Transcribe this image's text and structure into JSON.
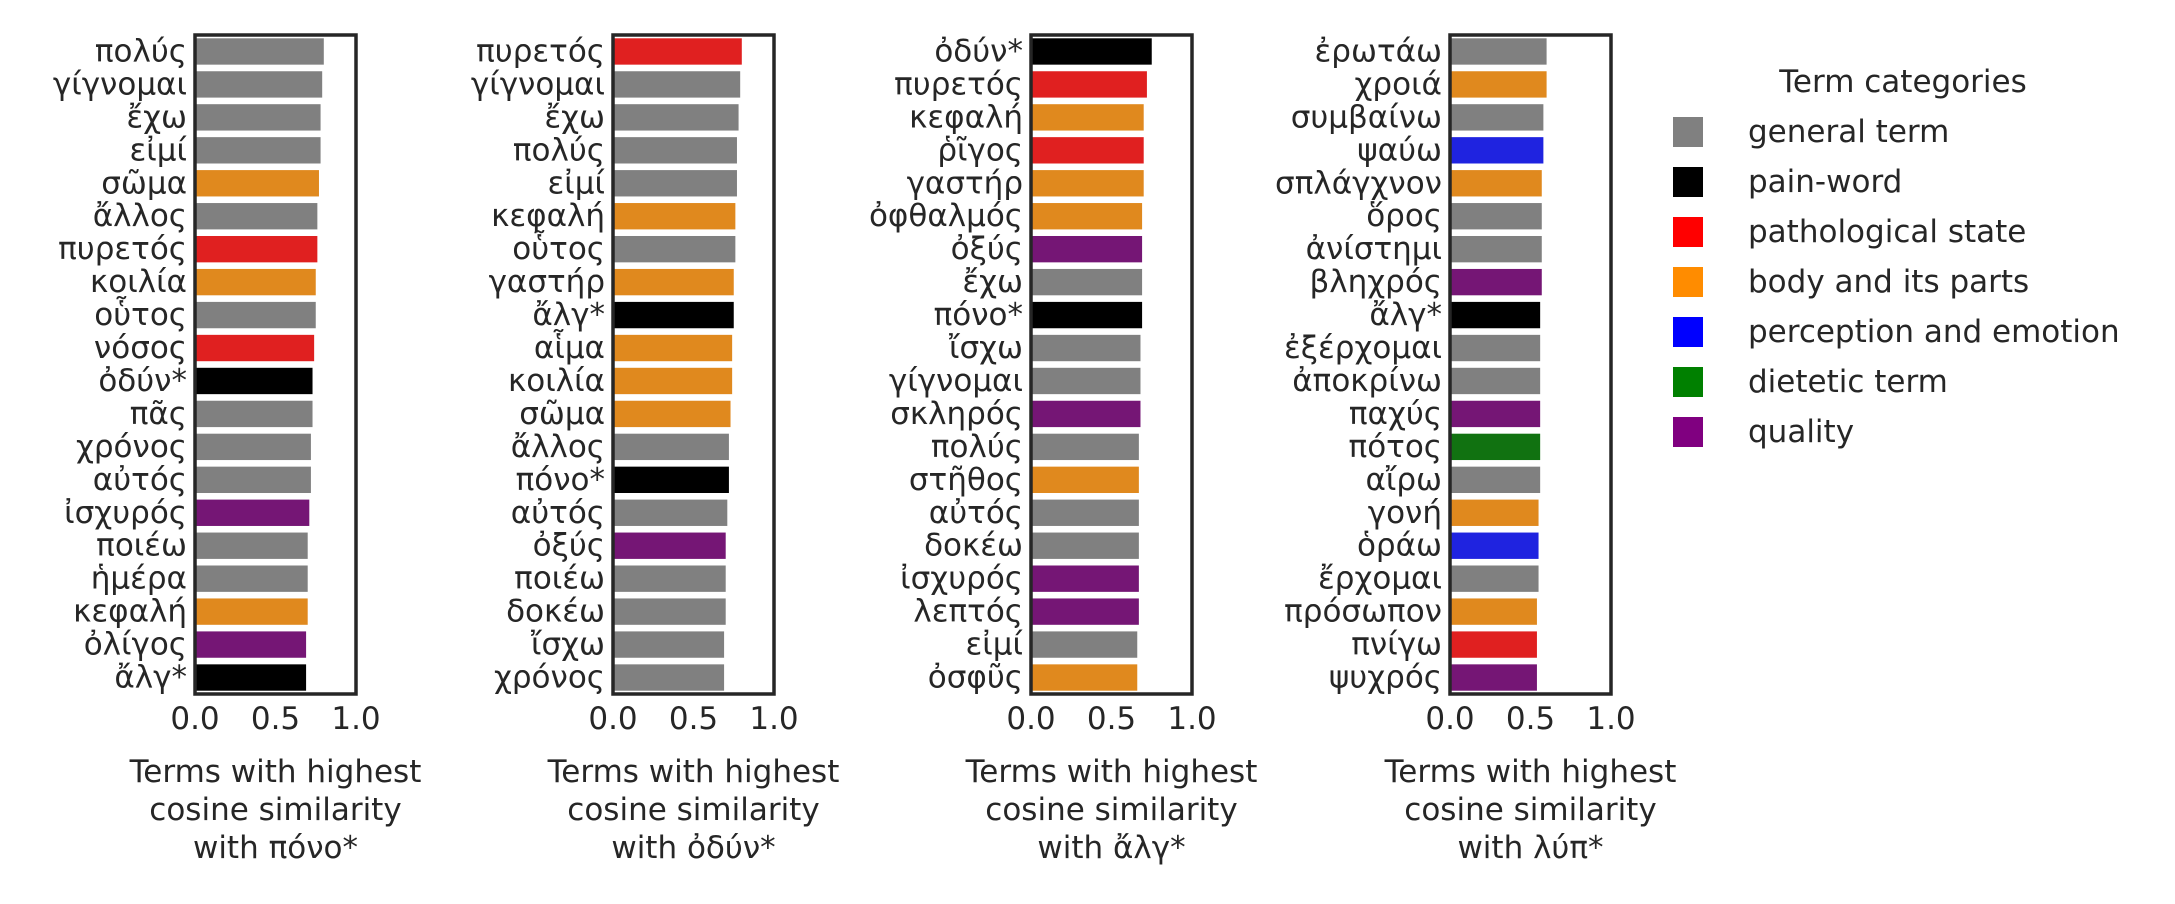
{
  "chart_data": [
    {
      "type": "bar",
      "orientation": "horizontal",
      "xlabel": "Terms with highest cosine similarity with πόνο*",
      "xlim": [
        0,
        1
      ],
      "xticks": [
        "0.0",
        "0.5",
        "1.0"
      ],
      "categories": [
        "πολύς",
        "γίγνομαι",
        "ἔχω",
        "εἰμί",
        "σῶμα",
        "ἄλλος",
        "πυρετός",
        "κοιλία",
        "οὗτος",
        "νόσος",
        "ὀδύν*",
        "πᾶς",
        "χρόνος",
        "αὐτός",
        "ἰσχυρός",
        "ποιέω",
        "ἡμέρα",
        "κεφαλή",
        "ὀλίγος",
        "ἄλγ*"
      ],
      "values": [
        0.8,
        0.79,
        0.78,
        0.78,
        0.77,
        0.76,
        0.76,
        0.75,
        0.75,
        0.74,
        0.73,
        0.73,
        0.72,
        0.72,
        0.71,
        0.7,
        0.7,
        0.7,
        0.69,
        0.69
      ],
      "groups": [
        "general term",
        "general term",
        "general term",
        "general term",
        "body and its parts",
        "general term",
        "pathological state",
        "body and its parts",
        "general term",
        "pathological state",
        "pain-word",
        "general term",
        "general term",
        "general term",
        "quality",
        "general term",
        "general term",
        "body and its parts",
        "quality",
        "pain-word"
      ]
    },
    {
      "type": "bar",
      "orientation": "horizontal",
      "xlabel": "Terms with highest cosine similarity with ὀδύν*",
      "xlim": [
        0,
        1
      ],
      "xticks": [
        "0.0",
        "0.5",
        "1.0"
      ],
      "categories": [
        "πυρετός",
        "γίγνομαι",
        "ἔχω",
        "πολύς",
        "εἰμί",
        "κεφαλή",
        "οὗτος",
        "γαστήρ",
        "ἄλγ*",
        "αἷμα",
        "κοιλία",
        "σῶμα",
        "ἄλλος",
        "πόνο*",
        "αὐτός",
        "ὀξύς",
        "ποιέω",
        "δοκέω",
        "ἴσχω",
        "χρόνος"
      ],
      "values": [
        0.8,
        0.79,
        0.78,
        0.77,
        0.77,
        0.76,
        0.76,
        0.75,
        0.75,
        0.74,
        0.74,
        0.73,
        0.72,
        0.72,
        0.71,
        0.7,
        0.7,
        0.7,
        0.69,
        0.69
      ],
      "groups": [
        "pathological state",
        "general term",
        "general term",
        "general term",
        "general term",
        "body and its parts",
        "general term",
        "body and its parts",
        "pain-word",
        "body and its parts",
        "body and its parts",
        "body and its parts",
        "general term",
        "pain-word",
        "general term",
        "quality",
        "general term",
        "general term",
        "general term",
        "general term"
      ]
    },
    {
      "type": "bar",
      "orientation": "horizontal",
      "xlabel": "Terms with highest cosine similarity with ἄλγ*",
      "xlim": [
        0,
        1
      ],
      "xticks": [
        "0.0",
        "0.5",
        "1.0"
      ],
      "categories": [
        "ὀδύν*",
        "πυρετός",
        "κεφαλή",
        "ῥῖγος",
        "γαστήρ",
        "ὀφθαλμός",
        "ὀξύς",
        "ἔχω",
        "πόνο*",
        "ἴσχω",
        "γίγνομαι",
        "σκληρός",
        "πολύς",
        "στῆθος",
        "αὐτός",
        "δοκέω",
        "ἰσχυρός",
        "λεπτός",
        "εἰμί",
        "ὀσφῦς"
      ],
      "values": [
        0.75,
        0.72,
        0.7,
        0.7,
        0.7,
        0.69,
        0.69,
        0.69,
        0.69,
        0.68,
        0.68,
        0.68,
        0.67,
        0.67,
        0.67,
        0.67,
        0.67,
        0.67,
        0.66,
        0.66
      ],
      "groups": [
        "pain-word",
        "pathological state",
        "body and its parts",
        "pathological state",
        "body and its parts",
        "body and its parts",
        "quality",
        "general term",
        "pain-word",
        "general term",
        "general term",
        "quality",
        "general term",
        "body and its parts",
        "general term",
        "general term",
        "quality",
        "quality",
        "general term",
        "body and its parts"
      ]
    },
    {
      "type": "bar",
      "orientation": "horizontal",
      "xlabel": "Terms with highest cosine similarity with λύπ*",
      "xlim": [
        0,
        1
      ],
      "xticks": [
        "0.0",
        "0.5",
        "1.0"
      ],
      "categories": [
        "ἐρωτάω",
        "χροιά",
        "συμβαίνω",
        "ψαύω",
        "σπλάγχνον",
        "ὅρος",
        "ἀνίστημι",
        "βληχρός",
        "ἄλγ*",
        "ἐξέρχομαι",
        "ἀποκρίνω",
        "παχύς",
        "πότος",
        "αἴρω",
        "γονή",
        "ὁράω",
        "ἔρχομαι",
        "πρόσωπον",
        "πνίγω",
        "ψυχρός"
      ],
      "values": [
        0.6,
        0.6,
        0.58,
        0.58,
        0.57,
        0.57,
        0.57,
        0.57,
        0.56,
        0.56,
        0.56,
        0.56,
        0.56,
        0.56,
        0.55,
        0.55,
        0.55,
        0.54,
        0.54,
        0.54
      ],
      "groups": [
        "general term",
        "body and its parts",
        "general term",
        "perception and emotion",
        "body and its parts",
        "general term",
        "general term",
        "quality",
        "pain-word",
        "general term",
        "general term",
        "quality",
        "dietetic term",
        "general term",
        "body and its parts",
        "perception and emotion",
        "general term",
        "body and its parts",
        "pathological state",
        "quality"
      ]
    }
  ],
  "legend": {
    "title": "Term categories",
    "placement": "right",
    "items": [
      {
        "label": "general term",
        "color": "#808080"
      },
      {
        "label": "pain-word",
        "color": "#000000"
      },
      {
        "label": "pathological state",
        "color": "#ff0000"
      },
      {
        "label": "body and its parts",
        "color": "#ff8c00"
      },
      {
        "label": "perception and emotion",
        "color": "#0000ff"
      },
      {
        "label": "dietetic term",
        "color": "#008000"
      },
      {
        "label": "quality",
        "color": "#800080"
      }
    ]
  },
  "bar_colors": {
    "general term": "#808080",
    "pain-word": "#000000",
    "pathological state": "#e02020",
    "body and its parts": "#e0891e",
    "perception and emotion": "#1f23e0",
    "dietetic term": "#117211",
    "quality": "#751675"
  }
}
